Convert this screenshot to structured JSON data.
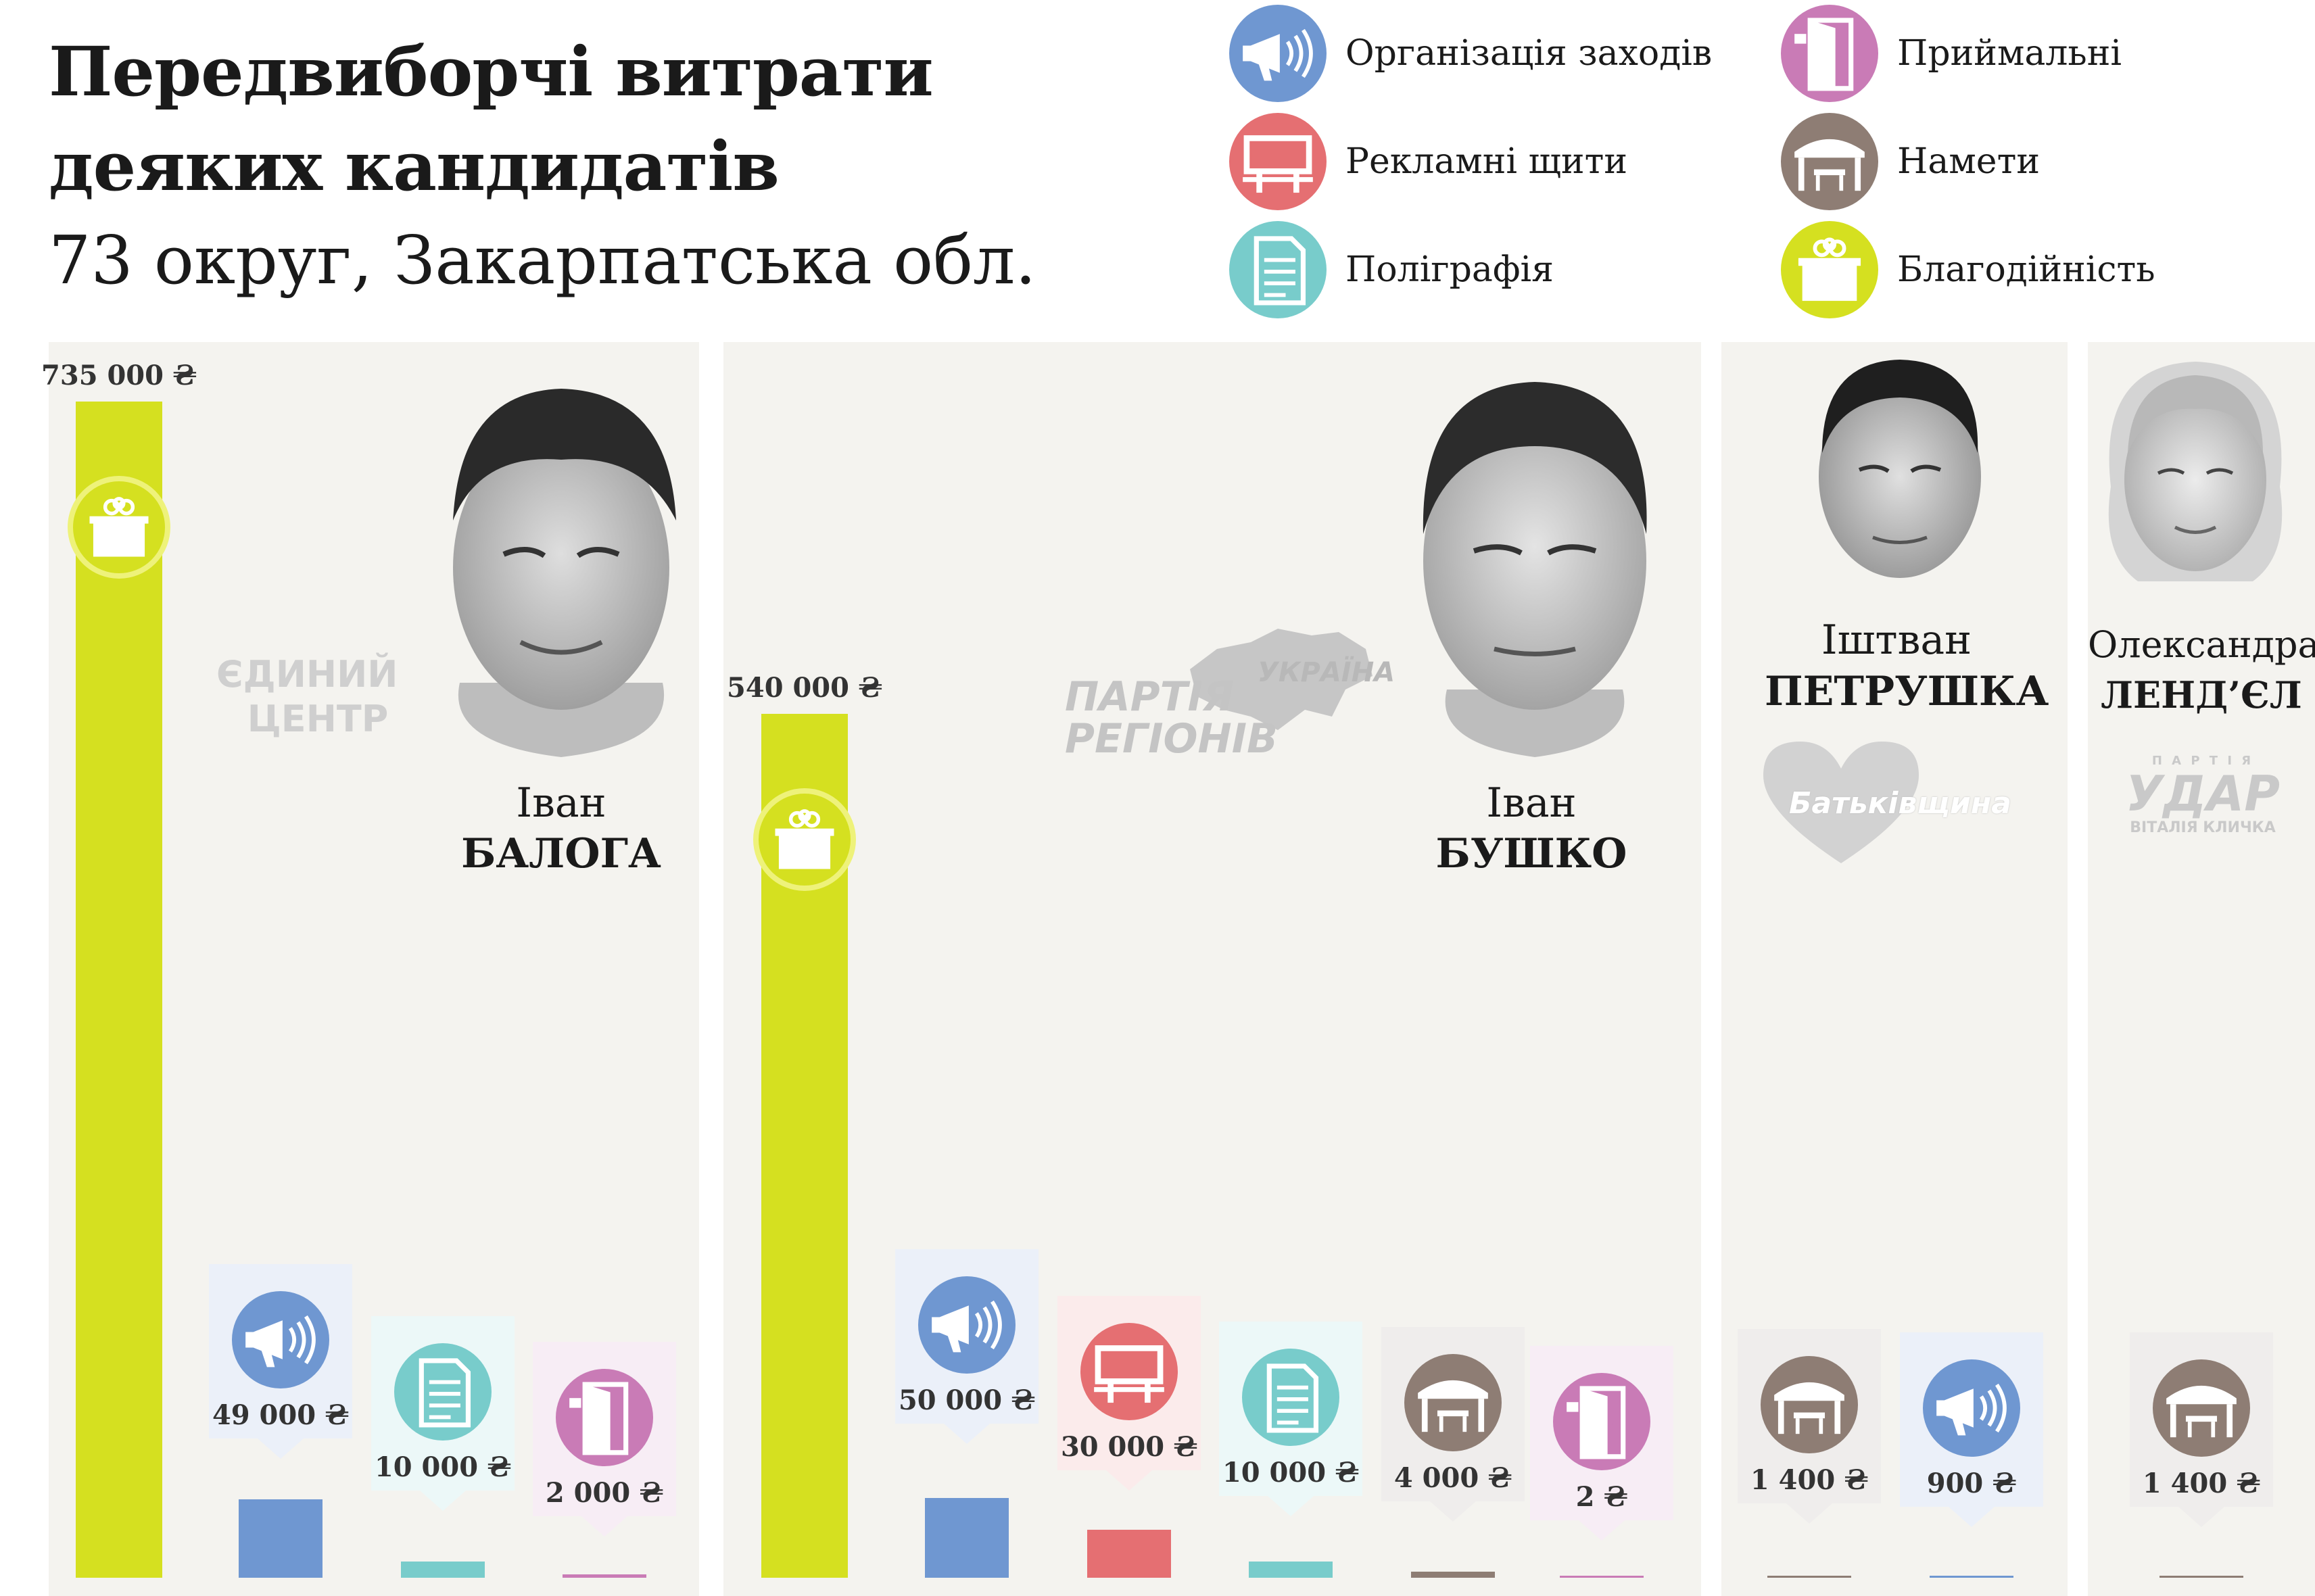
{
  "title": {
    "line1": "Передвиборчі витрати",
    "line2": "деяких кандидатів",
    "line3": "73 округ, Закарпатська обл."
  },
  "legend": [
    {
      "key": "events",
      "label": "Організація заходів",
      "color": "#6f97d1",
      "icon": "megaphone-icon"
    },
    {
      "key": "billboards",
      "label": "Рекламні щити",
      "color": "#e56f72",
      "icon": "billboard-icon"
    },
    {
      "key": "printing",
      "label": "Поліграфія",
      "color": "#78cccb",
      "icon": "document-icon"
    },
    {
      "key": "offices",
      "label": "Приймальні",
      "color": "#c97bb6",
      "icon": "door-icon"
    },
    {
      "key": "tents",
      "label": "Намети",
      "color": "#8e7d74",
      "icon": "tent-icon"
    },
    {
      "key": "charity",
      "label": "Благодійність",
      "color": "#d5e020",
      "icon": "gift-icon"
    }
  ],
  "candidates": [
    {
      "first": "Іван",
      "last": "БАЛОГА",
      "party_line1": "ЄДИНИЙ",
      "party_line2": "ЦЕНТР",
      "party_style": "center"
    },
    {
      "first": "Іван",
      "last": "БУШКО",
      "party_line1": "ПАРТІЯ",
      "party_line2": "РЕГІОНІВ",
      "party_extra": "УКРАЇНА",
      "party_style": "regions"
    },
    {
      "first": "Іштван",
      "last": "ПЕТРУШКА",
      "party_line1": "Батьківщина",
      "party_style": "batk"
    },
    {
      "first": "Олександра",
      "last": "ЛЕНД’ЄЛ",
      "party_top": "П А Р Т І Я",
      "party_line1": "УДАР",
      "party_line2": "ВІТАЛІЯ КЛИЧКА",
      "party_style": "udar"
    }
  ],
  "chart_data": {
    "type": "bar",
    "unit": "₴",
    "series": [
      {
        "candidate": "Іван БАЛОГА",
        "items": [
          {
            "category": "charity",
            "value": 735000,
            "label": "735 000 ₴"
          },
          {
            "category": "events",
            "value": 49000,
            "label": "49 000 ₴"
          },
          {
            "category": "printing",
            "value": 10000,
            "label": "10 000 ₴"
          },
          {
            "category": "offices",
            "value": 2000,
            "label": "2 000 ₴"
          }
        ]
      },
      {
        "candidate": "Іван БУШКО",
        "items": [
          {
            "category": "charity",
            "value": 540000,
            "label": "540 000 ₴"
          },
          {
            "category": "events",
            "value": 50000,
            "label": "50 000 ₴"
          },
          {
            "category": "billboards",
            "value": 30000,
            "label": "30 000 ₴"
          },
          {
            "category": "printing",
            "value": 10000,
            "label": "10 000 ₴"
          },
          {
            "category": "tents",
            "value": 4000,
            "label": "4 000 ₴"
          },
          {
            "category": "offices",
            "value": 2,
            "label": "2 ₴"
          }
        ]
      },
      {
        "candidate": "Іштван ПЕТРУШКА",
        "items": [
          {
            "category": "tents",
            "value": 1400,
            "label": "1 400 ₴"
          },
          {
            "category": "events",
            "value": 900,
            "label": "900 ₴"
          }
        ]
      },
      {
        "candidate": "Олександра ЛЕНД’ЄЛ",
        "items": [
          {
            "category": "tents",
            "value": 1400,
            "label": "1 400 ₴"
          }
        ]
      }
    ]
  }
}
